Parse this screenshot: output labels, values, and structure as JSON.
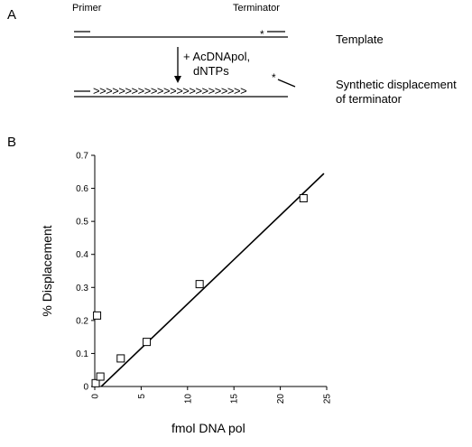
{
  "panelA": {
    "label": "A",
    "primer": "Primer",
    "terminator": "Terminator",
    "template": "Template",
    "reaction_line1": "+ AcDNApol,",
    "reaction_line2": "dNTPs",
    "synthetic_line1": "Synthetic displacement",
    "synthetic_line2": "of terminator",
    "star": "*",
    "arrows": ">>>>>>>>>>>>>>>>>>>>>>>>"
  },
  "panelB": {
    "label": "B"
  },
  "chart_data": {
    "type": "scatter",
    "xlabel": "fmol DNA pol",
    "ylabel": "% Displacement",
    "xlim": [
      0,
      25
    ],
    "ylim": [
      0,
      0.7
    ],
    "x_ticks": [
      "0",
      "5",
      "10",
      "15",
      "20",
      "25"
    ],
    "y_ticks": [
      "0",
      "0.1",
      "0.2",
      "0.3",
      "0.4",
      "0.5",
      "0.6",
      "0.7"
    ],
    "points": [
      {
        "x": 0.1,
        "y": 0.01
      },
      {
        "x": 0.25,
        "y": 0.215
      },
      {
        "x": 0.6,
        "y": 0.03
      },
      {
        "x": 2.8,
        "y": 0.085
      },
      {
        "x": 5.6,
        "y": 0.135
      },
      {
        "x": 11.3,
        "y": 0.31
      },
      {
        "x": 22.5,
        "y": 0.57
      }
    ],
    "fit_line": {
      "x": [
        0.7,
        24.7
      ],
      "y": [
        0.0,
        0.645
      ]
    }
  }
}
